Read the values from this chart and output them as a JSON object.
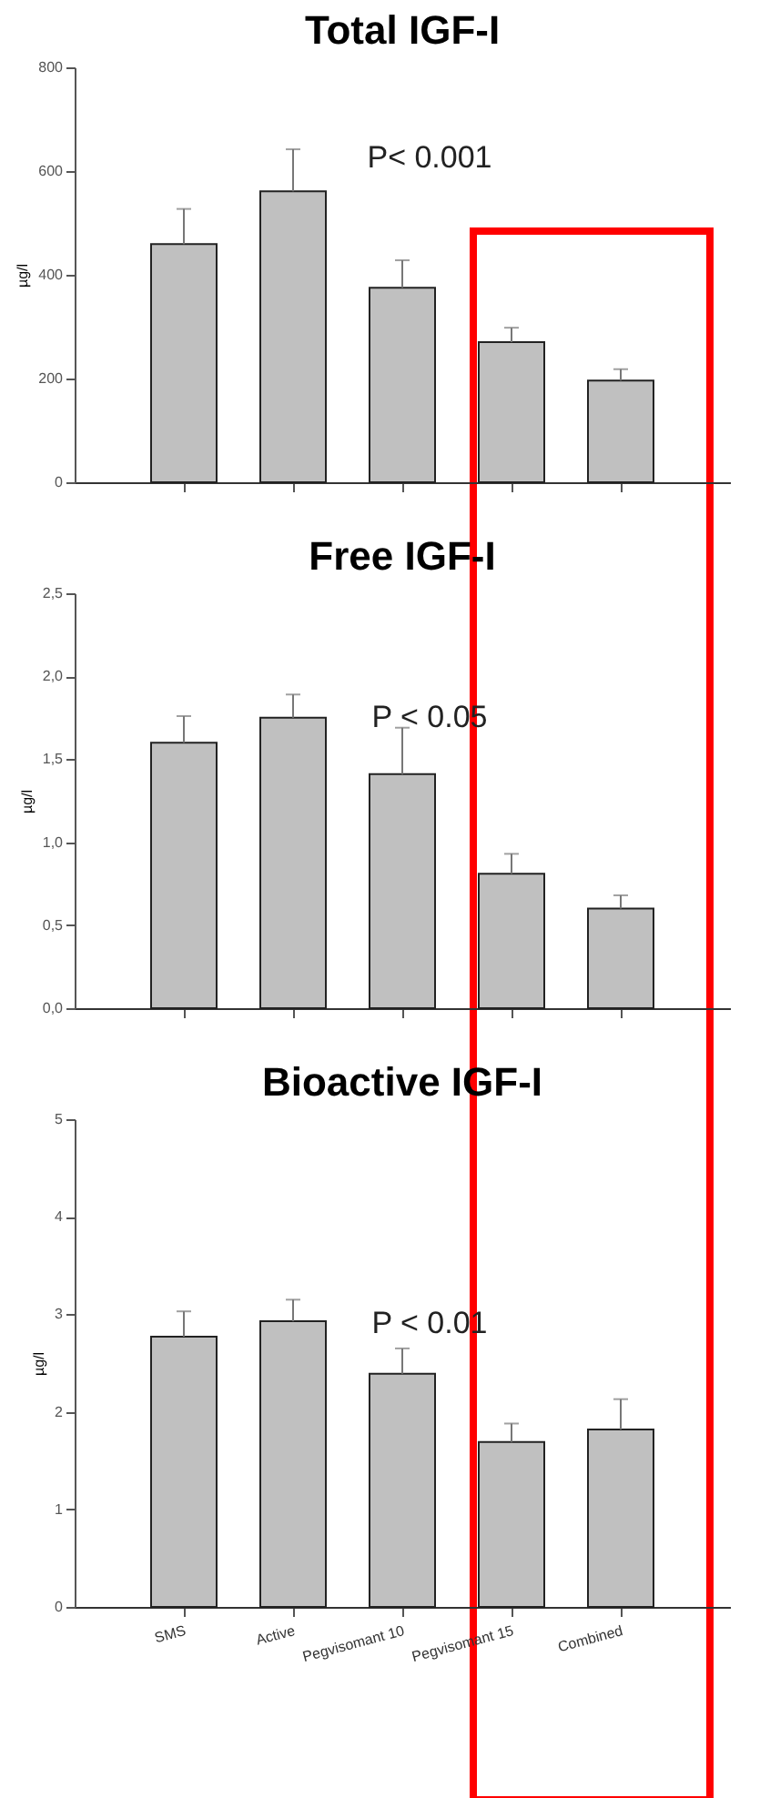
{
  "chart_data": [
    {
      "type": "bar",
      "title": "Total IGF-I",
      "ylabel": "µg/l",
      "categories": [
        null,
        null,
        null,
        null,
        null
      ],
      "values": [
        459,
        561,
        375,
        270,
        196
      ],
      "errors": [
        [
          459,
          527
        ],
        [
          561,
          642
        ],
        [
          375,
          428
        ],
        [
          270,
          298
        ],
        [
          196,
          218
        ]
      ],
      "color": "#c0c0c0",
      "ylim": [
        0,
        800
      ],
      "yticks": [
        0,
        200,
        400,
        600,
        800
      ],
      "annotations": [
        "P< 0.001"
      ],
      "tick_labels": "y"
    },
    {
      "type": "bar",
      "title": "Free IGF-I",
      "ylabel": "µg/l",
      "categories": [
        null,
        null,
        null,
        null,
        null
      ],
      "values": [
        1.6,
        1.75,
        1.41,
        0.81,
        0.6
      ],
      "errors": [
        [
          1.6,
          1.76
        ],
        [
          1.75,
          1.89
        ],
        [
          1.41,
          1.69
        ],
        [
          0.81,
          0.93
        ],
        [
          0.6,
          0.68
        ]
      ],
      "color": "#c0c0c0",
      "ylim": [
        0,
        2.5
      ],
      "yticks": [
        {
          "value": 0,
          "label": "0,0"
        },
        {
          "value": 0.5,
          "label": "0,5"
        },
        {
          "value": 1,
          "label": "1,0"
        },
        {
          "value": 1.5,
          "label": "1,5"
        },
        {
          "value": 2,
          "label": "2,0"
        },
        {
          "value": 2.5,
          "label": "2,5"
        }
      ],
      "annotations": [
        "P < 0.05"
      ],
      "tick_labels": "y"
    },
    {
      "type": "bar",
      "title": "Bioactive IGF-I",
      "ylabel": "µg/l",
      "categories": [
        "SMS",
        "Active",
        "Pegvisomant 10",
        "Pegvisomant 15",
        "Combined"
      ],
      "values": [
        2.77,
        2.93,
        2.39,
        1.69,
        1.82
      ],
      "errors": [
        [
          2.77,
          3.03
        ],
        [
          2.93,
          3.15
        ],
        [
          2.39,
          2.65
        ],
        [
          1.69,
          1.88
        ],
        [
          1.82,
          2.13
        ]
      ],
      "color": "#c0c0c0",
      "ylim": [
        0,
        5
      ],
      "yticks": [
        0,
        1,
        2,
        3,
        4,
        5
      ],
      "annotations": [
        "P < 0.01"
      ]
    }
  ]
}
